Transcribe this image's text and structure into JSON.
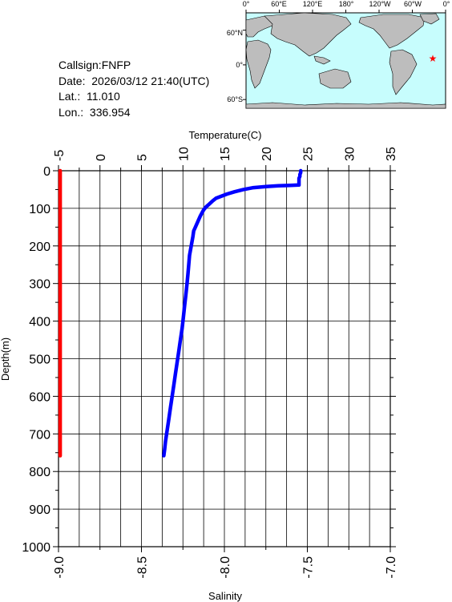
{
  "station": {
    "callsign": "Callsign:FNFP",
    "date": "Date:  2026/03/12 21:40(UTC)",
    "lat": "Lat.:  11.010",
    "lon": "Lon.:  336.954"
  },
  "map": {
    "lon_labels": [
      "0°",
      "60°E",
      "120°E",
      "180°",
      "120°W",
      "60°W",
      "0°"
    ],
    "lat_labels": [
      "60°N",
      "0°",
      "60°S"
    ],
    "ocean_color": "#c7fdfd",
    "land_color": "#bdbdbd",
    "marker_color": "#ff0000",
    "marker_lon": 336.954,
    "marker_lat": 11.01
  },
  "chart_data": {
    "type": "line",
    "ylabel": "Depth(m)",
    "ylim": [
      1000,
      0
    ],
    "y_ticks": [
      "0",
      "100",
      "200",
      "300",
      "400",
      "500",
      "600",
      "700",
      "800",
      "900",
      "1000"
    ],
    "top_axis": {
      "label": "Temperature(C)",
      "range": [
        -5,
        35
      ],
      "ticks": [
        "-5",
        "0",
        "5",
        "10",
        "15",
        "20",
        "25",
        "30",
        "35"
      ]
    },
    "bottom_axis": {
      "label": "Salinity",
      "range": [
        -9.0,
        -7.0
      ],
      "ticks": [
        "-9.0",
        "-8.5",
        "-8.0",
        "-7.5",
        "-7.0"
      ]
    },
    "grid": true,
    "series": [
      {
        "axis": "temperature",
        "color": "#0000ff",
        "points": [
          [
            24.2,
            0
          ],
          [
            24.2,
            5
          ],
          [
            24.1,
            10
          ],
          [
            24.1,
            15
          ],
          [
            24.0,
            20
          ],
          [
            24.0,
            25
          ],
          [
            24.0,
            30
          ],
          [
            24.0,
            35
          ],
          [
            24.0,
            38
          ],
          [
            23.0,
            39
          ],
          [
            21.5,
            40
          ],
          [
            20.0,
            42
          ],
          [
            18.5,
            45
          ],
          [
            17.3,
            50
          ],
          [
            16.2,
            56
          ],
          [
            15.3,
            62
          ],
          [
            14.6,
            68
          ],
          [
            14.0,
            73
          ],
          [
            13.6,
            80
          ],
          [
            13.2,
            88
          ],
          [
            12.8,
            96
          ],
          [
            12.5,
            104
          ],
          [
            12.3,
            112
          ],
          [
            12.1,
            120
          ],
          [
            11.8,
            135
          ],
          [
            11.5,
            150
          ],
          [
            11.3,
            160
          ],
          [
            11.2,
            175
          ],
          [
            11.0,
            200
          ],
          [
            10.8,
            225
          ],
          [
            10.7,
            250
          ],
          [
            10.6,
            275
          ],
          [
            10.5,
            300
          ],
          [
            10.35,
            330
          ],
          [
            10.2,
            360
          ],
          [
            10.05,
            390
          ],
          [
            9.9,
            420
          ],
          [
            9.7,
            450
          ],
          [
            9.5,
            480
          ],
          [
            9.3,
            510
          ],
          [
            9.1,
            540
          ],
          [
            8.9,
            570
          ],
          [
            8.7,
            600
          ],
          [
            8.5,
            630
          ],
          [
            8.3,
            660
          ],
          [
            8.1,
            690
          ],
          [
            7.9,
            720
          ],
          [
            7.8,
            740
          ],
          [
            7.7,
            758
          ]
        ]
      },
      {
        "axis": "salinity",
        "color": "#ff0000",
        "points": [
          [
            -8.99,
            0
          ],
          [
            -8.99,
            100
          ],
          [
            -8.99,
            200
          ],
          [
            -8.99,
            300
          ],
          [
            -8.99,
            400
          ],
          [
            -8.99,
            500
          ],
          [
            -8.99,
            600
          ],
          [
            -8.99,
            700
          ],
          [
            -8.99,
            758
          ]
        ]
      }
    ]
  }
}
